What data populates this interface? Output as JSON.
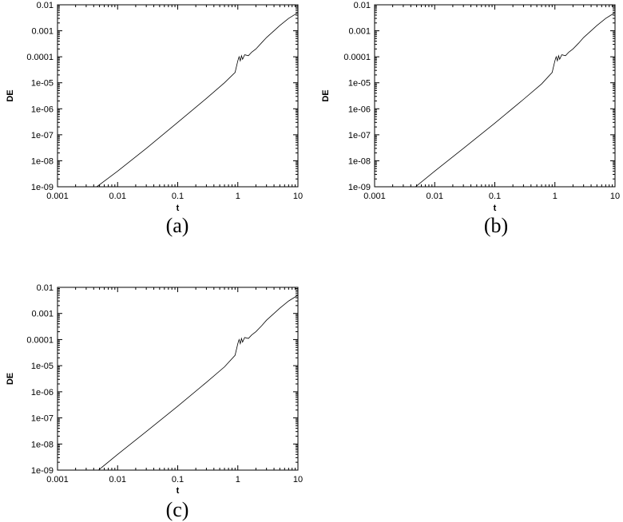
{
  "chart_data": [
    {
      "type": "line",
      "panel_label": "(a)",
      "xlabel": "t",
      "ylabel": "DE",
      "xscale": "log",
      "yscale": "log",
      "xlim": [
        0.001,
        10
      ],
      "ylim": [
        1e-09,
        0.01
      ],
      "x_tick_labels": [
        "0.001",
        "0.01",
        "0.1",
        "1",
        "10"
      ],
      "y_tick_labels": [
        "1e-09",
        "1e-08",
        "1e-07",
        "1e-06",
        "1e-05",
        "0.0001",
        "0.001",
        "0.01"
      ],
      "grid": false,
      "legend": "none",
      "series": [
        {
          "x": [
            0.0045,
            0.01,
            0.03,
            0.1,
            0.3,
            0.6,
            0.9,
            1.0,
            1.05,
            1.1,
            1.15,
            1.2,
            1.3,
            1.5,
            1.7,
            2.0,
            2.5,
            3.0,
            4.0,
            5.0,
            7.0,
            10.0
          ],
          "y": [
            1e-09,
            4e-09,
            3e-08,
            3e-07,
            2.5e-06,
            1e-05,
            2.5e-05,
            7e-05,
            0.0001,
            7e-05,
            0.00011,
            8e-05,
            0.00012,
            0.00011,
            0.00015,
            0.0002,
            0.00035,
            0.00055,
            0.001,
            0.0016,
            0.003,
            0.005
          ]
        }
      ]
    },
    {
      "type": "line",
      "panel_label": "(b)",
      "xlabel": "t",
      "ylabel": "DE",
      "xscale": "log",
      "yscale": "log",
      "xlim": [
        0.001,
        10
      ],
      "ylim": [
        1e-09,
        0.01
      ],
      "x_tick_labels": [
        "0.001",
        "0.01",
        "0.1",
        "1",
        "10"
      ],
      "y_tick_labels": [
        "1e-09",
        "1e-08",
        "1e-07",
        "1e-06",
        "1e-05",
        "0.0001",
        "0.001",
        "0.01"
      ],
      "grid": false,
      "legend": "none",
      "series": [
        {
          "x": [
            0.0048,
            0.01,
            0.03,
            0.1,
            0.3,
            0.6,
            0.9,
            1.0,
            1.05,
            1.1,
            1.15,
            1.2,
            1.3,
            1.5,
            1.7,
            2.0,
            2.5,
            3.0,
            4.0,
            5.0,
            7.0,
            10.0
          ],
          "y": [
            1e-09,
            4e-09,
            3e-08,
            2.8e-07,
            2.3e-06,
            9e-06,
            2.5e-05,
            7e-05,
            0.0001,
            7e-05,
            0.00011,
            8e-05,
            0.00012,
            0.00011,
            0.00015,
            0.0002,
            0.00034,
            0.00055,
            0.001,
            0.0016,
            0.003,
            0.005
          ]
        }
      ]
    },
    {
      "type": "line",
      "panel_label": "(c)",
      "xlabel": "t",
      "ylabel": "DE",
      "xscale": "log",
      "yscale": "log",
      "xlim": [
        0.001,
        10
      ],
      "ylim": [
        1e-09,
        0.01
      ],
      "x_tick_labels": [
        "0.001",
        "0.01",
        "0.1",
        "1",
        "10"
      ],
      "y_tick_labels": [
        "1e-09",
        "1e-08",
        "1e-07",
        "1e-06",
        "1e-05",
        "0.0001",
        "0.001",
        "0.01"
      ],
      "grid": false,
      "legend": "none",
      "series": [
        {
          "x": [
            0.0048,
            0.01,
            0.03,
            0.1,
            0.3,
            0.6,
            0.9,
            1.0,
            1.05,
            1.1,
            1.15,
            1.2,
            1.3,
            1.5,
            1.7,
            2.0,
            2.5,
            3.0,
            4.0,
            5.0,
            7.0,
            10.0
          ],
          "y": [
            1e-09,
            4e-09,
            3e-08,
            2.8e-07,
            2.3e-06,
            9e-06,
            2.5e-05,
            7e-05,
            0.0001,
            7e-05,
            0.00011,
            8e-05,
            0.00012,
            0.00011,
            0.00015,
            0.0002,
            0.00034,
            0.00055,
            0.001,
            0.0016,
            0.003,
            0.005
          ]
        }
      ]
    }
  ]
}
